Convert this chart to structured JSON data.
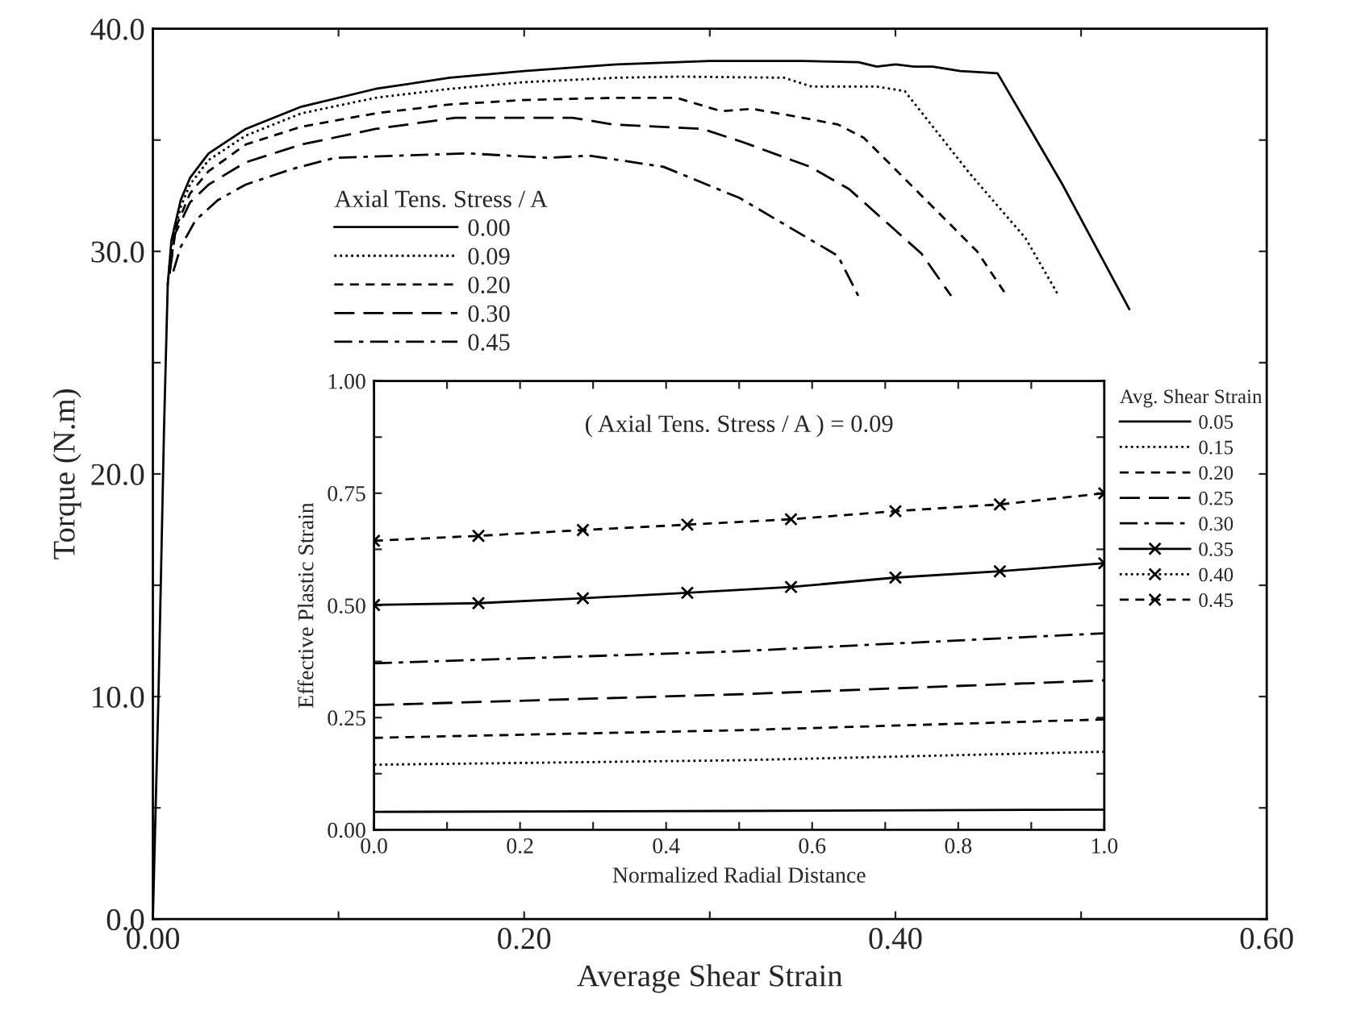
{
  "chart_data": [
    {
      "type": "line",
      "xlabel": "Average Shear Strain",
      "ylabel": "Torque (N.m)",
      "legend_title": "Axial Tens. Stress / A",
      "legend": "top left",
      "xlim": [
        0,
        0.6
      ],
      "ylim": [
        0,
        40
      ],
      "xticks": [
        {
          "value": 0,
          "label": "0.00"
        },
        {
          "value": 0.1,
          "label": null
        },
        {
          "value": 0.2,
          "label": "0.20"
        },
        {
          "value": 0.3,
          "label": null
        },
        {
          "value": 0.4,
          "label": "0.40"
        },
        {
          "value": 0.5,
          "label": null
        },
        {
          "value": 0.6,
          "label": "0.60"
        }
      ],
      "yticks": [
        {
          "value": 0,
          "label": "0.0"
        },
        {
          "value": 5,
          "label": null
        },
        {
          "value": 10,
          "label": "10.0"
        },
        {
          "value": 15,
          "label": null
        },
        {
          "value": 20,
          "label": "20.0"
        },
        {
          "value": 25,
          "label": null
        },
        {
          "value": 30,
          "label": "30.0"
        },
        {
          "value": 35,
          "label": null
        },
        {
          "value": 40,
          "label": "40.0"
        }
      ],
      "series": [
        {
          "name": "0.00",
          "color": "#000000",
          "line_style": "solid",
          "x": [
            0,
            0.003,
            0.006,
            0.008,
            0.01,
            0.015,
            0.02,
            0.03,
            0.05,
            0.08,
            0.12,
            0.16,
            0.2,
            0.25,
            0.3,
            0.35,
            0.38,
            0.39,
            0.4,
            0.41,
            0.42,
            0.435,
            0.455,
            0.49,
            0.526
          ],
          "values": [
            0,
            10,
            22,
            28.5,
            30.5,
            32.3,
            33.3,
            34.4,
            35.5,
            36.5,
            37.3,
            37.8,
            38.1,
            38.4,
            38.55,
            38.55,
            38.5,
            38.3,
            38.4,
            38.3,
            38.3,
            38.1,
            38.0,
            33.0,
            27.4
          ]
        },
        {
          "name": "0.09",
          "color": "#000000",
          "line_style": "dotted",
          "x": [
            0.008,
            0.01,
            0.015,
            0.02,
            0.03,
            0.05,
            0.08,
            0.12,
            0.16,
            0.2,
            0.25,
            0.284,
            0.34,
            0.355,
            0.39,
            0.405,
            0.44,
            0.47,
            0.488
          ],
          "values": [
            28.5,
            30.3,
            32.0,
            33.0,
            34.1,
            35.2,
            36.2,
            36.9,
            37.3,
            37.6,
            37.8,
            37.85,
            37.8,
            37.4,
            37.4,
            37.2,
            33.5,
            30.6,
            28.0
          ]
        },
        {
          "name": "0.20",
          "color": "#000000",
          "line_style": "dashed",
          "x": [
            0.009,
            0.012,
            0.02,
            0.03,
            0.05,
            0.08,
            0.12,
            0.16,
            0.2,
            0.25,
            0.282,
            0.306,
            0.323,
            0.35,
            0.369,
            0.383,
            0.444,
            0.46
          ],
          "values": [
            29.0,
            31.0,
            32.6,
            33.6,
            34.8,
            35.6,
            36.2,
            36.6,
            36.8,
            36.9,
            36.9,
            36.3,
            36.4,
            36.0,
            35.7,
            35.1,
            30.0,
            28.0
          ]
        },
        {
          "name": "0.30",
          "color": "#000000",
          "line_style": "longdash",
          "x": [
            0.009,
            0.012,
            0.02,
            0.03,
            0.05,
            0.08,
            0.12,
            0.163,
            0.226,
            0.248,
            0.296,
            0.318,
            0.354,
            0.375,
            0.414,
            0.43
          ],
          "values": [
            29.0,
            30.8,
            32.2,
            33.0,
            34.0,
            34.8,
            35.5,
            36.0,
            36.0,
            35.7,
            35.5,
            34.9,
            33.8,
            32.8,
            29.9,
            28.0
          ]
        },
        {
          "name": "0.45",
          "color": "#000000",
          "line_style": "dashdot",
          "x": [
            0.011,
            0.015,
            0.023,
            0.035,
            0.05,
            0.075,
            0.098,
            0.17,
            0.213,
            0.235,
            0.275,
            0.316,
            0.369,
            0.38
          ],
          "values": [
            29.1,
            30.2,
            31.4,
            32.3,
            33.0,
            33.7,
            34.2,
            34.4,
            34.2,
            34.3,
            33.8,
            32.4,
            29.8,
            28.0
          ]
        }
      ]
    },
    {
      "type": "line",
      "xlabel": "Normalized Radial Distance",
      "ylabel": "Effective Plastic Strain",
      "legend_title": "Avg. Shear Strain",
      "legend": "right",
      "annotations": [
        "( Axial Tens. Stress / A ) = 0.09"
      ],
      "xlim": [
        0,
        1
      ],
      "ylim": [
        0,
        1
      ],
      "xticks": [
        {
          "value": 0,
          "label": "0.0"
        },
        {
          "value": 0.1,
          "label": null
        },
        {
          "value": 0.2,
          "label": "0.2"
        },
        {
          "value": 0.3,
          "label": null
        },
        {
          "value": 0.4,
          "label": "0.4"
        },
        {
          "value": 0.5,
          "label": null
        },
        {
          "value": 0.6,
          "label": "0.6"
        },
        {
          "value": 0.7,
          "label": null
        },
        {
          "value": 0.8,
          "label": "0.8"
        },
        {
          "value": 0.9,
          "label": null
        },
        {
          "value": 1,
          "label": "1.0"
        }
      ],
      "yticks": [
        {
          "value": 0,
          "label": "0.00"
        },
        {
          "value": 0.125,
          "label": null
        },
        {
          "value": 0.25,
          "label": "0.25"
        },
        {
          "value": 0.375,
          "label": null
        },
        {
          "value": 0.5,
          "label": "0.50"
        },
        {
          "value": 0.625,
          "label": null
        },
        {
          "value": 0.75,
          "label": "0.75"
        },
        {
          "value": 0.875,
          "label": null
        },
        {
          "value": 1,
          "label": "1.00"
        }
      ],
      "series": [
        {
          "name": "0.05",
          "color": "#000000",
          "line_style": "solid",
          "x": [
            0,
            0.5,
            1
          ],
          "values": [
            0.04,
            0.042,
            0.045
          ]
        },
        {
          "name": "0.15",
          "color": "#000000",
          "line_style": "dotted",
          "x": [
            0,
            0.5,
            1
          ],
          "values": [
            0.145,
            0.155,
            0.174
          ]
        },
        {
          "name": "0.20",
          "color": "#000000",
          "line_style": "dashed",
          "x": [
            0,
            0.5,
            1
          ],
          "values": [
            0.205,
            0.222,
            0.246
          ]
        },
        {
          "name": "0.25",
          "color": "#000000",
          "line_style": "longdash",
          "x": [
            0,
            0.5,
            1
          ],
          "values": [
            0.278,
            0.302,
            0.333
          ]
        },
        {
          "name": "0.30",
          "color": "#000000",
          "line_style": "dashdot",
          "x": [
            0,
            0.5,
            1
          ],
          "values": [
            0.371,
            0.398,
            0.438
          ]
        },
        {
          "name": "0.35",
          "color": "#000000",
          "line_style": "solid",
          "marker": "cross",
          "x": [
            0,
            0.143,
            0.286,
            0.429,
            0.571,
            0.714,
            0.857,
            1
          ],
          "values": [
            0.501,
            0.505,
            0.516,
            0.528,
            0.541,
            0.562,
            0.576,
            0.594
          ]
        },
        {
          "name": "0.40",
          "color": "#000000",
          "line_style": "dotted",
          "marker": "cross"
        },
        {
          "name": "0.45",
          "color": "#000000",
          "line_style": "dashed",
          "marker": "cross",
          "x": [
            0,
            0.143,
            0.286,
            0.429,
            0.571,
            0.714,
            0.857,
            1
          ],
          "values": [
            0.644,
            0.655,
            0.668,
            0.68,
            0.692,
            0.71,
            0.725,
            0.75
          ]
        }
      ]
    }
  ]
}
